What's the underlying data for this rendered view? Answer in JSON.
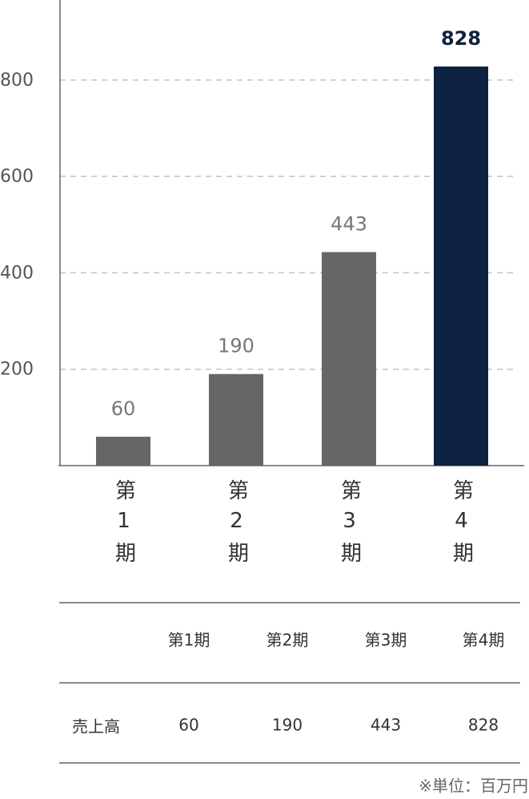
{
  "chart_data": {
    "type": "bar",
    "categories": [
      "第1期",
      "第2期",
      "第3期",
      "第4期"
    ],
    "values": [
      60,
      190,
      443,
      828
    ],
    "colors": [
      "#666666",
      "#666666",
      "#666666",
      "#0d2240"
    ],
    "ylim": [
      0,
      966
    ],
    "yticks": [
      200,
      400,
      600,
      800
    ],
    "grid": true
  },
  "table": {
    "columns": [
      "第1期",
      "第2期",
      "第3期",
      "第4期"
    ],
    "rows": [
      {
        "label": "売上高",
        "values": [
          60,
          190,
          443,
          828
        ]
      }
    ]
  },
  "note": "※単位：百万円"
}
